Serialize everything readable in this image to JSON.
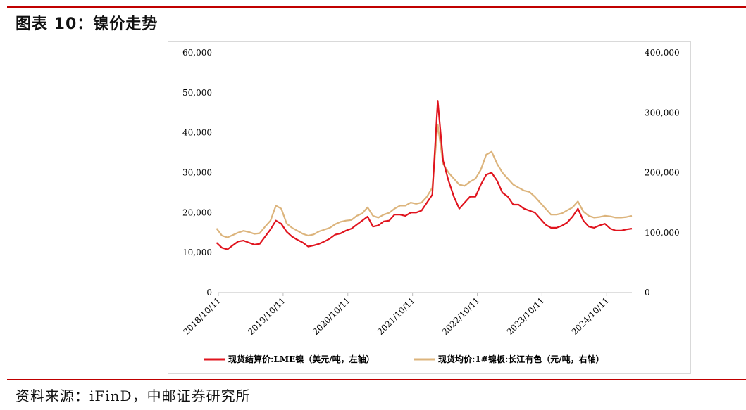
{
  "header": {
    "title": "图表 10：镍价走势"
  },
  "footer": {
    "source": "资料来源：iFinD，中邮证券研究所"
  },
  "colors": {
    "lme": "#e0141e",
    "spot": "#dcb47c",
    "accent": "#c00000"
  },
  "chart_data": {
    "type": "line",
    "title": "",
    "xlabel": "",
    "ylabel_left": "",
    "ylabel_right": "",
    "x_tick_labels": [
      "2018/10/11",
      "2019/10/11",
      "2020/10/11",
      "2021/10/11",
      "2022/10/11",
      "2023/10/11",
      "2024/10/11"
    ],
    "y_left": {
      "range": [
        0,
        60000
      ],
      "ticks": [
        "0",
        "10,000",
        "20,000",
        "30,000",
        "40,000",
        "50,000",
        "60,000"
      ]
    },
    "y_right": {
      "range": [
        0,
        400000
      ],
      "ticks": [
        "0",
        "100,000",
        "200,000",
        "300,000",
        "400,000"
      ]
    },
    "grid": false,
    "legend_position": "bottom",
    "series": [
      {
        "name": "现货结算价:LME镍（美元/吨，左轴）",
        "axis": "left",
        "x": [
          "2018/10",
          "2018/11",
          "2018/12",
          "2019/01",
          "2019/02",
          "2019/03",
          "2019/04",
          "2019/05",
          "2019/06",
          "2019/07",
          "2019/08",
          "2019/09",
          "2019/10",
          "2019/11",
          "2019/12",
          "2020/01",
          "2020/02",
          "2020/03",
          "2020/04",
          "2020/05",
          "2020/06",
          "2020/07",
          "2020/08",
          "2020/09",
          "2020/10",
          "2020/11",
          "2020/12",
          "2021/01",
          "2021/02",
          "2021/03",
          "2021/04",
          "2021/05",
          "2021/06",
          "2021/07",
          "2021/08",
          "2021/09",
          "2021/10",
          "2021/11",
          "2021/12",
          "2022/01",
          "2022/02",
          "2022/03",
          "2022/04",
          "2022/05",
          "2022/06",
          "2022/07",
          "2022/08",
          "2022/09",
          "2022/10",
          "2022/11",
          "2022/12",
          "2023/01",
          "2023/02",
          "2023/03",
          "2023/04",
          "2023/05",
          "2023/06",
          "2023/07",
          "2023/08",
          "2023/09",
          "2023/10",
          "2023/11",
          "2023/12",
          "2024/01",
          "2024/02",
          "2024/03",
          "2024/04",
          "2024/05",
          "2024/06",
          "2024/07",
          "2024/08",
          "2024/09",
          "2024/10",
          "2024/11",
          "2024/12",
          "2025/01",
          "2025/02",
          "2025/03"
        ],
        "values": [
          12500,
          11200,
          10800,
          11800,
          12800,
          13000,
          12500,
          12000,
          12200,
          14000,
          15800,
          18000,
          17200,
          15200,
          14000,
          13200,
          12500,
          11500,
          11800,
          12200,
          12800,
          13500,
          14500,
          14800,
          15500,
          16000,
          17000,
          18000,
          19000,
          16500,
          16800,
          17800,
          18000,
          19500,
          19500,
          19200,
          20000,
          20000,
          20500,
          22500,
          24500,
          48000,
          33000,
          28000,
          24000,
          21000,
          22500,
          24000,
          24000,
          27000,
          29500,
          30000,
          28000,
          25000,
          24000,
          22000,
          22000,
          21000,
          20500,
          20000,
          18500,
          17000,
          16200,
          16200,
          16700,
          17500,
          19000,
          21000,
          18000,
          16500,
          16200,
          16800,
          17200,
          16000,
          15500,
          15500,
          15800,
          16000
        ]
      },
      {
        "name": "现货均价:1#镍板:长江有色（元/吨，右轴）",
        "axis": "right",
        "x": [
          "2018/10",
          "2018/11",
          "2018/12",
          "2019/01",
          "2019/02",
          "2019/03",
          "2019/04",
          "2019/05",
          "2019/06",
          "2019/07",
          "2019/08",
          "2019/09",
          "2019/10",
          "2019/11",
          "2019/12",
          "2020/01",
          "2020/02",
          "2020/03",
          "2020/04",
          "2020/05",
          "2020/06",
          "2020/07",
          "2020/08",
          "2020/09",
          "2020/10",
          "2020/11",
          "2020/12",
          "2021/01",
          "2021/02",
          "2021/03",
          "2021/04",
          "2021/05",
          "2021/06",
          "2021/07",
          "2021/08",
          "2021/09",
          "2021/10",
          "2021/11",
          "2021/12",
          "2022/01",
          "2022/02",
          "2022/03",
          "2022/04",
          "2022/05",
          "2022/06",
          "2022/07",
          "2022/08",
          "2022/09",
          "2022/10",
          "2022/11",
          "2022/12",
          "2023/01",
          "2023/02",
          "2023/03",
          "2023/04",
          "2023/05",
          "2023/06",
          "2023/07",
          "2023/08",
          "2023/09",
          "2023/10",
          "2023/11",
          "2023/12",
          "2024/01",
          "2024/02",
          "2024/03",
          "2024/04",
          "2024/05",
          "2024/06",
          "2024/07",
          "2024/08",
          "2024/09",
          "2024/10",
          "2024/11",
          "2024/12",
          "2025/01",
          "2025/02",
          "2025/03"
        ],
        "values": [
          107000,
          95000,
          92000,
          96000,
          100000,
          103000,
          101000,
          98000,
          99000,
          110000,
          120000,
          145000,
          140000,
          115000,
          108000,
          103000,
          98000,
          95000,
          97000,
          102000,
          105000,
          108000,
          114000,
          118000,
          120000,
          121000,
          128000,
          132000,
          142000,
          128000,
          125000,
          130000,
          133000,
          140000,
          145000,
          145000,
          150000,
          148000,
          150000,
          160000,
          175000,
          280000,
          215000,
          200000,
          190000,
          180000,
          178000,
          185000,
          190000,
          205000,
          230000,
          235000,
          215000,
          200000,
          190000,
          180000,
          175000,
          170000,
          168000,
          160000,
          150000,
          140000,
          130000,
          130000,
          132000,
          137000,
          142000,
          152000,
          135000,
          128000,
          125000,
          126000,
          128000,
          127000,
          125000,
          125000,
          126000,
          128000
        ]
      }
    ]
  }
}
